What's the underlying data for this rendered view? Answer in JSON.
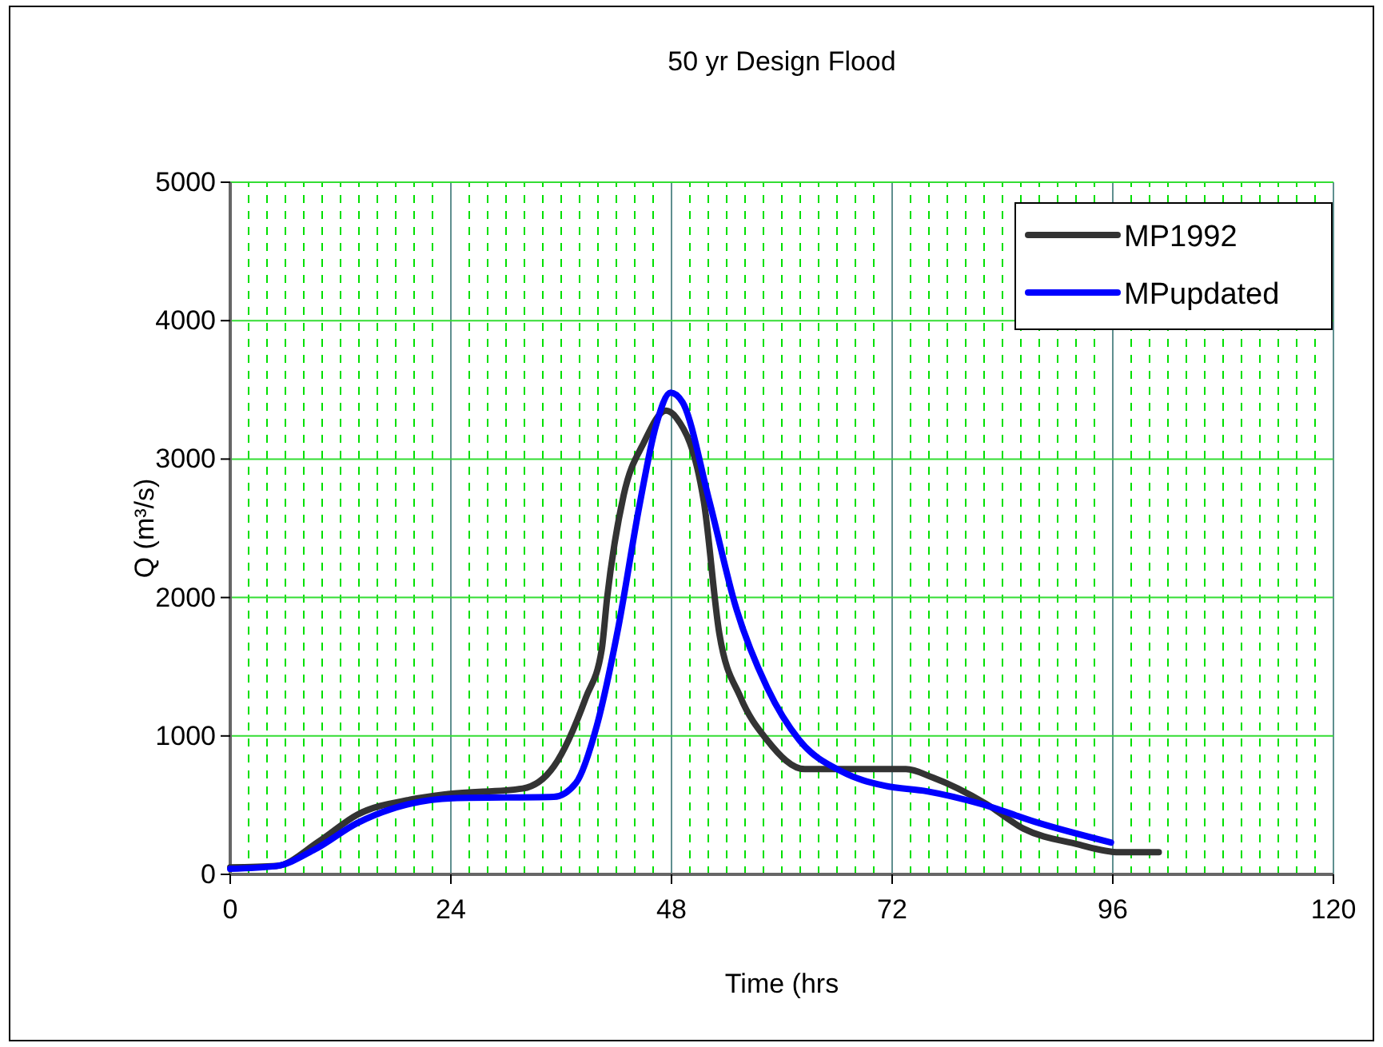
{
  "chart_data": {
    "type": "line",
    "title": "50 yr Design Flood",
    "xlabel": "Time (hrs",
    "ylabel": "Q (m³/s)",
    "xlim": [
      0,
      120
    ],
    "xticks": [
      0,
      {
        "value": 2,
        "label": null
      },
      {
        "value": 4,
        "label": null
      },
      {
        "value": 6,
        "label": null
      },
      {
        "value": 8,
        "label": null
      },
      {
        "value": 10,
        "label": null
      },
      {
        "value": 12,
        "label": null
      },
      {
        "value": 14,
        "label": null
      },
      {
        "value": 16,
        "label": null
      },
      {
        "value": 18,
        "label": null
      },
      {
        "value": 20,
        "label": null
      },
      {
        "value": 22,
        "label": null
      },
      24,
      {
        "value": 26,
        "label": null
      },
      {
        "value": 28,
        "label": null
      },
      {
        "value": 30,
        "label": null
      },
      {
        "value": 32,
        "label": null
      },
      {
        "value": 34,
        "label": null
      },
      {
        "value": 36,
        "label": null
      },
      {
        "value": 38,
        "label": null
      },
      {
        "value": 40,
        "label": null
      },
      {
        "value": 42,
        "label": null
      },
      {
        "value": 44,
        "label": null
      },
      {
        "value": 46,
        "label": null
      },
      48,
      {
        "value": 50,
        "label": null
      },
      {
        "value": 52,
        "label": null
      },
      {
        "value": 54,
        "label": null
      },
      {
        "value": 56,
        "label": null
      },
      {
        "value": 58,
        "label": null
      },
      {
        "value": 60,
        "label": null
      },
      {
        "value": 62,
        "label": null
      },
      {
        "value": 64,
        "label": null
      },
      {
        "value": 66,
        "label": null
      },
      {
        "value": 68,
        "label": null
      },
      {
        "value": 70,
        "label": null
      },
      72,
      {
        "value": 74,
        "label": null
      },
      {
        "value": 76,
        "label": null
      },
      {
        "value": 78,
        "label": null
      },
      {
        "value": 80,
        "label": null
      },
      {
        "value": 82,
        "label": null
      },
      {
        "value": 84,
        "label": null
      },
      {
        "value": 86,
        "label": null
      },
      {
        "value": 88,
        "label": null
      },
      {
        "value": 90,
        "label": null
      },
      {
        "value": 92,
        "label": null
      },
      {
        "value": 94,
        "label": null
      },
      96,
      {
        "value": 98,
        "label": null
      },
      {
        "value": 100,
        "label": null
      },
      {
        "value": 102,
        "label": null
      },
      {
        "value": 104,
        "label": null
      },
      {
        "value": 106,
        "label": null
      },
      {
        "value": 108,
        "label": null
      },
      {
        "value": 110,
        "label": null
      },
      {
        "value": 112,
        "label": null
      },
      {
        "value": 114,
        "label": null
      },
      {
        "value": 116,
        "label": null
      },
      {
        "value": 118,
        "label": null
      },
      120
    ],
    "ylim": [
      0,
      5000
    ],
    "yticks": [
      0,
      1000,
      2000,
      3000,
      4000,
      5000
    ],
    "grid": true,
    "legend": "top right",
    "marker": "none",
    "line_style": "solid",
    "series": [
      {
        "name": "MP1992",
        "color": "#333333",
        "x": [
          0,
          5,
          9.7,
          13.8,
          19.6,
          23.7,
          31.8,
          35.2,
          38.7,
          40.4,
          41,
          42.8,
          45,
          47.4,
          48.5,
          51.5,
          53.2,
          55.5,
          58.4,
          62.5,
          73.5,
          76.4,
          82.2,
          86.3,
          92,
          96.7,
          101
        ],
        "values": [
          50,
          60,
          240,
          430,
          540,
          580,
          620,
          780,
          1280,
          1620,
          2000,
          2740,
          3120,
          3350,
          3300,
          2700,
          1740,
          1280,
          970,
          760,
          760,
          700,
          510,
          330,
          220,
          160,
          160
        ]
      },
      {
        "name": "MPupdated",
        "color": "#0000ff",
        "x": [
          0,
          5,
          9.2,
          13.8,
          19.6,
          24.2,
          35.2,
          37.6,
          39.9,
          42.2,
          44.5,
          46.3,
          47.9,
          49.2,
          52.1,
          55,
          58.4,
          61.9,
          66.6,
          71.2,
          75.8,
          81.6,
          88,
          95.8
        ],
        "values": [
          40,
          60,
          180,
          370,
          510,
          550,
          560,
          660,
          1080,
          1780,
          2660,
          3240,
          3480,
          3410,
          2700,
          1930,
          1350,
          970,
          740,
          640,
          600,
          510,
          370,
          230
        ]
      }
    ]
  }
}
